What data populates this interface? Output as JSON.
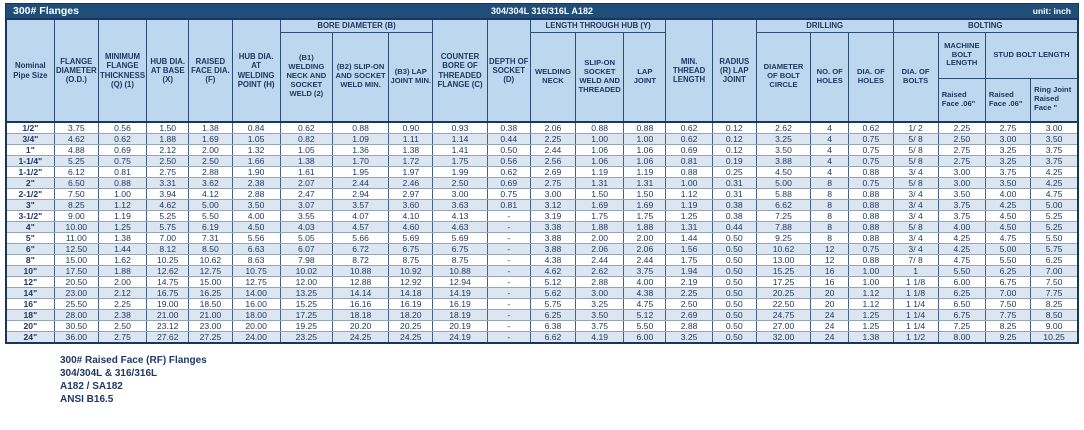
{
  "title_bar": {
    "title": "300# Flanges",
    "material": "304/304L 316/316L A182",
    "unit": "unit: inch"
  },
  "header": {
    "nominal": "Nominal Pipe Size",
    "od": "FLANGE DIAMETER (O.D.)",
    "thickness": "MINIMUM FLANGE THICKNESS (Q) (1)",
    "hub_base": "HUB DIA. AT BASE (X)",
    "raised_face": "RAISED FACE DIA. (F)",
    "hub_weld": "HUB DIA. AT WELDING POINT (H)",
    "bore_group": "BORE DIAMETER (B)",
    "b1": "(B1) WELDING NECK AND SOCKET WELD (2)",
    "b2": "(B2) SLIP-ON AND SOCKET WELD MIN.",
    "b3": "(B3) LAP JOINT MIN.",
    "counter_bore": "COUNTER BORE OF THREADED FLANGE (C)",
    "depth_socket": "DEPTH OF SOCKET (D)",
    "length_group": "LENGTH THROUGH HUB (Y)",
    "welding_neck": "WELDING NECK",
    "slip_on": "SLIP-ON SOCKET WELD AND THREADED",
    "lap_joint": "LAP JOINT",
    "min_thread": "MIN. THREAD LENGTH",
    "radius": "RADIUS (R) LAP JOINT",
    "drilling_group": "DRILLING",
    "bolt_circle": "DIAMETER OF BOLT CIRCLE",
    "no_holes": "NO. OF HOLES",
    "dia_holes": "DIA. OF HOLES",
    "bolting_group": "BOLTING",
    "dia_bolts": "DIA. OF BOLTS",
    "machine_bolt": "MACHINE BOLT LENGTH",
    "stud_bolt": "STUD BOLT LENGTH",
    "raised_06_a": "Raised Face .06\"",
    "raised_06_b": "Raised Face .06\"",
    "ring_joint": "Ring Joint Raised Face \""
  },
  "table": {
    "rows": [
      [
        "1/2\"",
        "3.75",
        "0.56",
        "1.50",
        "1.38",
        "0.84",
        "0.62",
        "0.88",
        "0.90",
        "0.93",
        "0.38",
        "2.06",
        "0.88",
        "0.88",
        "0.62",
        "0.12",
        "2.62",
        "4",
        "0.62",
        "1/ 2",
        "2.25",
        "2.75",
        "3.00"
      ],
      [
        "3/4\"",
        "4.62",
        "0.62",
        "1.88",
        "1.69",
        "1.05",
        "0.82",
        "1.09",
        "1.11",
        "1.14",
        "0.44",
        "2.25",
        "1.00",
        "1.00",
        "0.62",
        "0.12",
        "3.25",
        "4",
        "0.75",
        "5/ 8",
        "2.50",
        "3.00",
        "3.50"
      ],
      [
        "1\"",
        "4.88",
        "0.69",
        "2.12",
        "2.00",
        "1.32",
        "1.05",
        "1.36",
        "1.38",
        "1.41",
        "0.50",
        "2.44",
        "1.06",
        "1.06",
        "0.69",
        "0.12",
        "3.50",
        "4",
        "0.75",
        "5/ 8",
        "2.75",
        "3.25",
        "3.75"
      ],
      [
        "1-1/4\"",
        "5.25",
        "0.75",
        "2.50",
        "2.50",
        "1.66",
        "1.38",
        "1.70",
        "1.72",
        "1.75",
        "0.56",
        "2.56",
        "1.06",
        "1.06",
        "0.81",
        "0.19",
        "3.88",
        "4",
        "0.75",
        "5/ 8",
        "2.75",
        "3.25",
        "3.75"
      ],
      [
        "1-1/2\"",
        "6.12",
        "0.81",
        "2.75",
        "2.88",
        "1.90",
        "1.61",
        "1.95",
        "1.97",
        "1.99",
        "0.62",
        "2.69",
        "1.19",
        "1.19",
        "0.88",
        "0.25",
        "4.50",
        "4",
        "0.88",
        "3/ 4",
        "3.00",
        "3.75",
        "4.25"
      ],
      [
        "2\"",
        "6.50",
        "0.88",
        "3.31",
        "3.62",
        "2.38",
        "2.07",
        "2.44",
        "2.46",
        "2.50",
        "0.69",
        "2.75",
        "1.31",
        "1.31",
        "1.00",
        "0.31",
        "5.00",
        "8",
        "0.75",
        "5/ 8",
        "3.00",
        "3.50",
        "4.25"
      ],
      [
        "2-1/2\"",
        "7.50",
        "1.00",
        "3.94",
        "4.12",
        "2.88",
        "2.47",
        "2.94",
        "2.97",
        "3.00",
        "0.75",
        "3.00",
        "1.50",
        "1.50",
        "1.12",
        "0.31",
        "5.88",
        "8",
        "0.88",
        "3/ 4",
        "3.50",
        "4.00",
        "4.75"
      ],
      [
        "3\"",
        "8.25",
        "1.12",
        "4.62",
        "5.00",
        "3.50",
        "3.07",
        "3.57",
        "3.60",
        "3.63",
        "0.81",
        "3.12",
        "1.69",
        "1.69",
        "1.19",
        "0.38",
        "6.62",
        "8",
        "0.88",
        "3/ 4",
        "3.75",
        "4.25",
        "5.00"
      ],
      [
        "3-1/2\"",
        "9.00",
        "1.19",
        "5.25",
        "5.50",
        "4.00",
        "3.55",
        "4.07",
        "4.10",
        "4.13",
        "-",
        "3.19",
        "1.75",
        "1.75",
        "1.25",
        "0.38",
        "7.25",
        "8",
        "0.88",
        "3/ 4",
        "3.75",
        "4.50",
        "5.25"
      ],
      [
        "4\"",
        "10.00",
        "1.25",
        "5.75",
        "6.19",
        "4.50",
        "4.03",
        "4.57",
        "4.60",
        "4.63",
        "-",
        "3.38",
        "1.88",
        "1.88",
        "1.31",
        "0.44",
        "7.88",
        "8",
        "0.88",
        "5/ 8",
        "4.00",
        "4.50",
        "5.25"
      ],
      [
        "5\"",
        "11.00",
        "1.38",
        "7.00",
        "7.31",
        "5.56",
        "5.05",
        "5.66",
        "5.69",
        "5.69",
        "-",
        "3.88",
        "2.00",
        "2.00",
        "1.44",
        "0.50",
        "9.25",
        "8",
        "0.88",
        "3/ 4",
        "4.25",
        "4.75",
        "5.50"
      ],
      [
        "6\"",
        "12.50",
        "1.44",
        "8.12",
        "8.50",
        "6.63",
        "6.07",
        "6.72",
        "6.75",
        "6.75",
        "-",
        "3.88",
        "2.06",
        "2.06",
        "1.56",
        "0.50",
        "10.62",
        "12",
        "0.75",
        "3/ 4",
        "4.25",
        "5.00",
        "5.75"
      ],
      [
        "8\"",
        "15.00",
        "1.62",
        "10.25",
        "10.62",
        "8.63",
        "7.98",
        "8.72",
        "8.75",
        "8.75",
        "-",
        "4.38",
        "2.44",
        "2.44",
        "1.75",
        "0.50",
        "13.00",
        "12",
        "0.88",
        "7/ 8",
        "4.75",
        "5.50",
        "6.25"
      ],
      [
        "10\"",
        "17.50",
        "1.88",
        "12.62",
        "12.75",
        "10.75",
        "10.02",
        "10.88",
        "10.92",
        "10.88",
        "-",
        "4.62",
        "2.62",
        "3.75",
        "1.94",
        "0.50",
        "15.25",
        "16",
        "1.00",
        "1",
        "5.50",
        "6.25",
        "7.00"
      ],
      [
        "12\"",
        "20.50",
        "2.00",
        "14.75",
        "15.00",
        "12.75",
        "12.00",
        "12.88",
        "12.92",
        "12.94",
        "-",
        "5.12",
        "2.88",
        "4.00",
        "2.19",
        "0.50",
        "17.25",
        "16",
        "1.00",
        "1 1/8",
        "6.00",
        "6.75",
        "7.50"
      ],
      [
        "14\"",
        "23.00",
        "2.12",
        "16.75",
        "16.25",
        "14.00",
        "13.25",
        "14.14",
        "14.18",
        "14.19",
        "-",
        "5.62",
        "3.00",
        "4.38",
        "2.25",
        "0.50",
        "20.25",
        "20",
        "1.12",
        "1 1/8",
        "6.25",
        "7.00",
        "7.75"
      ],
      [
        "16\"",
        "25.50",
        "2.25",
        "19.00",
        "18.50",
        "16.00",
        "15.25",
        "16.16",
        "16.19",
        "16.19",
        "-",
        "5.75",
        "3.25",
        "4.75",
        "2.50",
        "0.50",
        "22.50",
        "20",
        "1.12",
        "1 1/4",
        "6.50",
        "7.50",
        "8.25"
      ],
      [
        "18\"",
        "28.00",
        "2.38",
        "21.00",
        "21.00",
        "18.00",
        "17.25",
        "18.18",
        "18.20",
        "18.19",
        "-",
        "6.25",
        "3.50",
        "5.12",
        "2.69",
        "0.50",
        "24.75",
        "24",
        "1.25",
        "1 1/4",
        "6.75",
        "7.75",
        "8.50"
      ],
      [
        "20\"",
        "30.50",
        "2.50",
        "23.12",
        "23.00",
        "20.00",
        "19.25",
        "20.20",
        "20.25",
        "20.19",
        "-",
        "6.38",
        "3.75",
        "5.50",
        "2.88",
        "0.50",
        "27.00",
        "24",
        "1.25",
        "1 1/4",
        "7.25",
        "8.25",
        "9.00"
      ],
      [
        "24\"",
        "36.00",
        "2.75",
        "27.62",
        "27.25",
        "24.00",
        "23.25",
        "24.25",
        "24.25",
        "24.19",
        "-",
        "6.62",
        "4.19",
        "6.00",
        "3.25",
        "0.50",
        "32.00",
        "24",
        "1.38",
        "1 1/2",
        "8.00",
        "9.25",
        "10.25"
      ]
    ]
  },
  "footer": {
    "lines": [
      "300# Raised Face (RF) Flanges",
      "304/304L & 316/316L",
      "A182 / SA182",
      "ANSI B16.5"
    ]
  },
  "colors": {
    "title_bg": "#1F4E79",
    "header_bg": "#BDD7EE",
    "stripe_bg": "#DCE6F1",
    "text": "#1F3864"
  }
}
